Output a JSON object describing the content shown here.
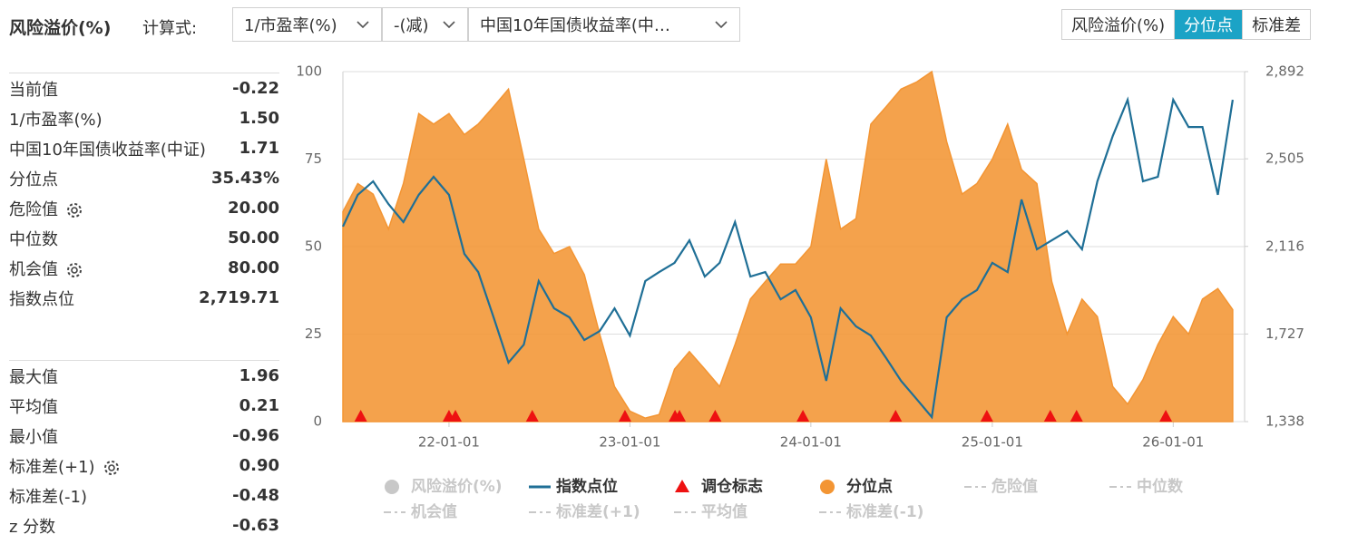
{
  "header": {
    "title": "风险溢价(%)",
    "formula_label": "计算式:",
    "dropdowns": [
      "1/市盈率(%)",
      "-(减)",
      "中国10年国债收益率(中…"
    ],
    "tabs": [
      "风险溢价(%)",
      "分位点",
      "标准差"
    ],
    "active_tab": 1
  },
  "stats": {
    "group1": [
      [
        "当前值",
        "-0.22"
      ],
      [
        "1/市盈率(%)",
        "1.50"
      ],
      [
        "中国10年国债收益率(中证)",
        "1.71"
      ],
      [
        "分位点",
        "35.43%"
      ],
      [
        "危险值",
        "20.00"
      ],
      [
        "中位数",
        "50.00"
      ],
      [
        "机会值",
        "80.00"
      ],
      [
        "指数点位",
        "2,719.71"
      ]
    ],
    "group2": [
      [
        "最大值",
        "1.96"
      ],
      [
        "平均值",
        "0.21"
      ],
      [
        "最小值",
        "-0.96"
      ],
      [
        "标准差(+1)",
        "0.90"
      ],
      [
        "标准差(-1)",
        "-0.48"
      ],
      [
        "z 分数",
        "-0.63"
      ]
    ]
  },
  "chart_data": {
    "type": "area-line",
    "x": [
      "21-06-01",
      "21-07-01",
      "21-08-01",
      "21-09-01",
      "21-10-01",
      "21-11-01",
      "21-12-01",
      "22-01-01",
      "22-02-01",
      "22-03-01",
      "22-04-01",
      "22-05-01",
      "22-06-01",
      "22-07-01",
      "22-08-01",
      "22-09-01",
      "22-10-01",
      "22-11-01",
      "22-12-01",
      "23-01-01",
      "23-02-01",
      "23-03-01",
      "23-04-01",
      "23-05-01",
      "23-06-01",
      "23-07-01",
      "23-08-01",
      "23-09-01",
      "23-10-01",
      "23-11-01",
      "23-12-01",
      "24-01-01",
      "24-02-01",
      "24-03-01",
      "24-04-01",
      "24-05-01",
      "24-06-01",
      "24-07-01",
      "24-08-01",
      "24-09-01",
      "24-10-01",
      "24-11-01",
      "24-12-01",
      "25-01-01",
      "25-02-01",
      "25-03-01",
      "25-04-01",
      "25-05-01",
      "25-06-01",
      "25-07-01",
      "25-08-01",
      "25-09-01",
      "25-10-01",
      "25-11-01",
      "25-12-01",
      "26-01-01",
      "26-02-01",
      "26-03-01",
      "26-04-01",
      "26-05-01"
    ],
    "xlim": [
      "21-06-01",
      "26-05-25"
    ],
    "xticks": [
      "22-01-01",
      "23-01-01",
      "24-01-01",
      "25-01-01",
      "26-01-01"
    ],
    "ylim": [
      0,
      100
    ],
    "yticks": [
      0,
      25,
      50,
      75,
      100
    ],
    "y2lim": [
      1338,
      2892
    ],
    "y2ticks": [
      {
        "value": 1338,
        "label": "1,338"
      },
      {
        "value": 1727,
        "label": "1,727"
      },
      {
        "value": 2116,
        "label": "2,116"
      },
      {
        "value": 2505,
        "label": "2,505"
      },
      {
        "value": 2892,
        "label": "2,892"
      }
    ],
    "grid": true,
    "series": [
      {
        "name": "风险溢价(%)",
        "icon": "circle",
        "visible": false
      },
      {
        "name": "指数点位",
        "icon": "line",
        "type": "line",
        "axis": "y2",
        "color": "#1f6f96",
        "visible": true,
        "values": [
          2204,
          2345,
          2405,
          2304,
          2224,
          2345,
          2425,
          2345,
          2083,
          2002,
          1801,
          1600,
          1680,
          1962,
          1841,
          1801,
          1700,
          1740,
          1841,
          1720,
          1962,
          2002,
          2043,
          2143,
          1982,
          2043,
          2224,
          1982,
          2002,
          1881,
          1922,
          1801,
          1519,
          1841,
          1761,
          1720,
          1620,
          1519,
          1439,
          1358,
          1801,
          1881,
          1922,
          2043,
          2002,
          2324,
          2103,
          2143,
          2184,
          2103,
          2405,
          2606,
          2767,
          2405,
          2425,
          2767,
          2646,
          2646,
          2345,
          2767
        ]
      },
      {
        "name": "调仓标志",
        "icon": "triangle",
        "type": "marker",
        "color": "#ee1111",
        "visible": true,
        "x": [
          "21-07-07",
          "22-01-01",
          "22-01-14",
          "22-06-18",
          "22-12-22",
          "23-04-02",
          "23-04-11",
          "23-06-22",
          "23-12-16",
          "24-06-20",
          "24-12-21",
          "25-04-28",
          "25-06-20",
          "25-12-17"
        ]
      },
      {
        "name": "分位点",
        "icon": "circle",
        "type": "area",
        "color": "#f39533",
        "visible": true,
        "values": [
          60,
          68,
          65,
          55,
          68,
          88,
          85,
          88,
          82,
          85,
          90,
          95,
          75,
          55,
          48,
          50,
          42,
          25,
          10,
          3,
          1,
          2,
          15,
          20,
          15,
          10,
          22,
          35,
          40,
          45,
          45,
          50,
          75,
          55,
          58,
          85,
          90,
          95,
          97,
          100,
          80,
          65,
          68,
          75,
          85,
          72,
          68,
          40,
          25,
          35,
          30,
          10,
          5,
          12,
          22,
          30,
          25,
          35,
          38,
          32
        ]
      },
      {
        "name": "危险值",
        "icon": "dash",
        "visible": false
      },
      {
        "name": "中位数",
        "icon": "dash",
        "visible": false
      },
      {
        "name": "机会值",
        "icon": "dash",
        "visible": false
      },
      {
        "name": "标准差(+1)",
        "icon": "dash",
        "visible": false
      },
      {
        "name": "平均值",
        "icon": "dash",
        "visible": false
      },
      {
        "name": "标准差(-1)",
        "icon": "dash",
        "visible": false
      }
    ]
  }
}
